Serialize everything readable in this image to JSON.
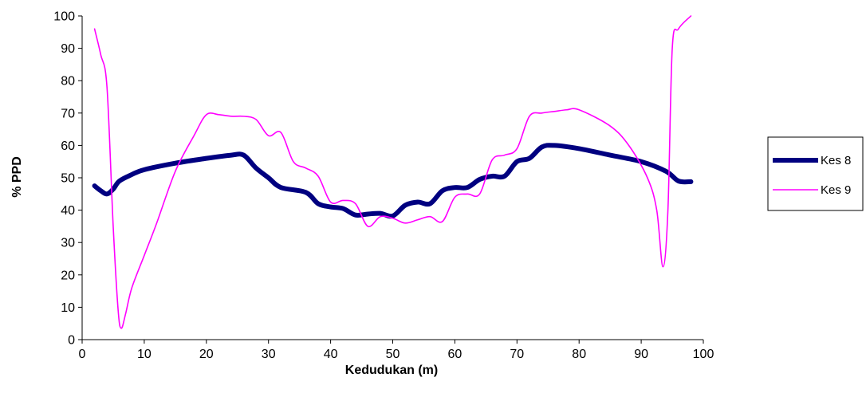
{
  "chart_data": {
    "type": "line",
    "title": "",
    "xlabel": "Kedudukan (m)",
    "ylabel": "% PPD",
    "xlim": [
      0,
      100
    ],
    "ylim": [
      0,
      100
    ],
    "xticks": [
      0,
      10,
      20,
      30,
      40,
      50,
      60,
      70,
      80,
      90,
      100
    ],
    "yticks": [
      0,
      10,
      20,
      30,
      40,
      50,
      60,
      70,
      80,
      90,
      100
    ],
    "grid": false,
    "legend_position": "right",
    "series": [
      {
        "name": "Kes 8",
        "color": "#000080",
        "x": [
          2,
          3,
          4,
          5,
          6,
          8,
          10,
          15,
          20,
          24,
          26,
          28,
          30,
          32,
          36,
          38,
          40,
          42,
          44,
          46,
          48,
          50,
          52,
          54,
          56,
          58,
          60,
          62,
          64,
          66,
          68,
          70,
          72,
          74,
          76,
          80,
          85,
          90,
          94,
          96,
          98
        ],
        "y": [
          47.5,
          46,
          45,
          46.5,
          49,
          51,
          52.5,
          54.5,
          56,
          57,
          57,
          53,
          50,
          47,
          45.5,
          42,
          41,
          40.5,
          38.5,
          38.8,
          39,
          38.2,
          41.5,
          42.5,
          42,
          46,
          47,
          47,
          49.5,
          50.5,
          50.5,
          55,
          56,
          59.5,
          60,
          59,
          57,
          55,
          52,
          49,
          48.8
        ]
      },
      {
        "name": "Kes 9",
        "color": "#ff00ff",
        "x": [
          2,
          3,
          4,
          5,
          5.8,
          6.3,
          7,
          8,
          10,
          12,
          15,
          18,
          20,
          22,
          24,
          26,
          28,
          30,
          32,
          34,
          36,
          38,
          40,
          42,
          44,
          46,
          48,
          50,
          52,
          54,
          56,
          58,
          60,
          62,
          64,
          66,
          68,
          70,
          72,
          74,
          76,
          78,
          80,
          85,
          88,
          91,
          92.5,
          93.5,
          94.3,
          95,
          96,
          98
        ],
        "y": [
          96,
          88,
          78,
          35,
          9,
          3.5,
          8,
          16,
          26,
          36,
          52,
          63,
          69.5,
          69.5,
          69,
          69,
          68,
          63,
          64,
          55,
          53,
          50.5,
          42.5,
          43,
          42,
          35,
          38,
          37.5,
          36,
          37,
          38,
          36.5,
          44,
          45,
          45,
          55.5,
          57,
          59,
          69,
          70,
          70.5,
          71,
          71,
          66,
          60,
          50,
          40,
          22.5,
          40,
          90,
          96,
          100
        ]
      }
    ]
  }
}
